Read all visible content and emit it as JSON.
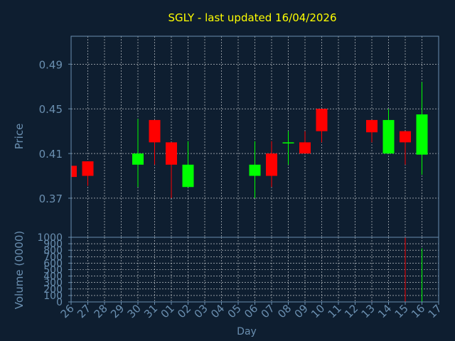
{
  "chart_data": [
    {
      "type": "candlestick",
      "title": "SGLY - last updated 16/04/2026",
      "ylabel": "Price",
      "xlabel": "Day",
      "ylim": [
        0.335,
        0.515
      ],
      "yticks": [
        "0.37",
        "0.41",
        "0.45",
        "0.49"
      ],
      "categories": [
        "26",
        "27",
        "28",
        "29",
        "30",
        "31",
        "01",
        "02",
        "03",
        "04",
        "05",
        "06",
        "07",
        "08",
        "09",
        "10",
        "11",
        "12",
        "13",
        "14",
        "15",
        "16",
        "17"
      ],
      "candles": [
        {
          "x": "26",
          "open": 0.399,
          "close": 0.389,
          "high": 0.399,
          "low": 0.389,
          "color": "#ff0000"
        },
        {
          "x": "27",
          "open": 0.403,
          "close": 0.39,
          "high": 0.403,
          "low": 0.381,
          "color": "#ff0000"
        },
        {
          "x": "30",
          "open": 0.4,
          "close": 0.41,
          "high": 0.441,
          "low": 0.38,
          "color": "#00ff00"
        },
        {
          "x": "31",
          "open": 0.44,
          "close": 0.42,
          "high": 0.44,
          "low": 0.4,
          "color": "#ff0000"
        },
        {
          "x": "01",
          "open": 0.42,
          "close": 0.4,
          "high": 0.42,
          "low": 0.37,
          "color": "#ff0000"
        },
        {
          "x": "02",
          "open": 0.38,
          "close": 0.4,
          "high": 0.421,
          "low": 0.38,
          "color": "#00ff00"
        },
        {
          "x": "06",
          "open": 0.39,
          "close": 0.4,
          "high": 0.421,
          "low": 0.37,
          "color": "#00ff00"
        },
        {
          "x": "07",
          "open": 0.41,
          "close": 0.39,
          "high": 0.421,
          "low": 0.38,
          "color": "#ff0000"
        },
        {
          "x": "08",
          "open": 0.42,
          "close": 0.42,
          "high": 0.43,
          "low": 0.4,
          "color": "#00ff00"
        },
        {
          "x": "09",
          "open": 0.42,
          "close": 0.41,
          "high": 0.43,
          "low": 0.41,
          "color": "#ff0000"
        },
        {
          "x": "10",
          "open": 0.45,
          "close": 0.43,
          "high": 0.45,
          "low": 0.42,
          "color": "#ff0000"
        },
        {
          "x": "13",
          "open": 0.44,
          "close": 0.429,
          "high": 0.44,
          "low": 0.42,
          "color": "#ff0000"
        },
        {
          "x": "14",
          "open": 0.41,
          "close": 0.44,
          "high": 0.45,
          "low": 0.41,
          "color": "#00ff00"
        },
        {
          "x": "15",
          "open": 0.43,
          "close": 0.42,
          "high": 0.43,
          "low": 0.4,
          "color": "#ff0000"
        },
        {
          "x": "16",
          "open": 0.409,
          "close": 0.445,
          "high": 0.474,
          "low": 0.391,
          "color": "#00ff00"
        }
      ]
    },
    {
      "type": "bar",
      "ylabel": "Volume (0000)",
      "ylim": [
        0,
        1000
      ],
      "yticks": [
        "0",
        "100",
        "200",
        "300",
        "400",
        "500",
        "600",
        "700",
        "800",
        "900",
        "1000"
      ],
      "categories": [
        "26",
        "27",
        "28",
        "29",
        "30",
        "31",
        "01",
        "02",
        "03",
        "04",
        "05",
        "06",
        "07",
        "08",
        "09",
        "10",
        "11",
        "12",
        "13",
        "14",
        "15",
        "16",
        "17"
      ],
      "bars": [
        {
          "x": "13",
          "value": 8,
          "color": "#ff0000"
        },
        {
          "x": "15",
          "value": 1000,
          "color": "#ff0000"
        },
        {
          "x": "16",
          "value": 830,
          "color": "#00ff00"
        }
      ]
    }
  ],
  "colors": {
    "background": "#0e1e30",
    "title": "#ffff00",
    "axis_text": "#6a8fb0",
    "axis_line": "#6a8fb0",
    "grid": "#ffffff",
    "up": "#00ff00",
    "down": "#ff0000"
  }
}
